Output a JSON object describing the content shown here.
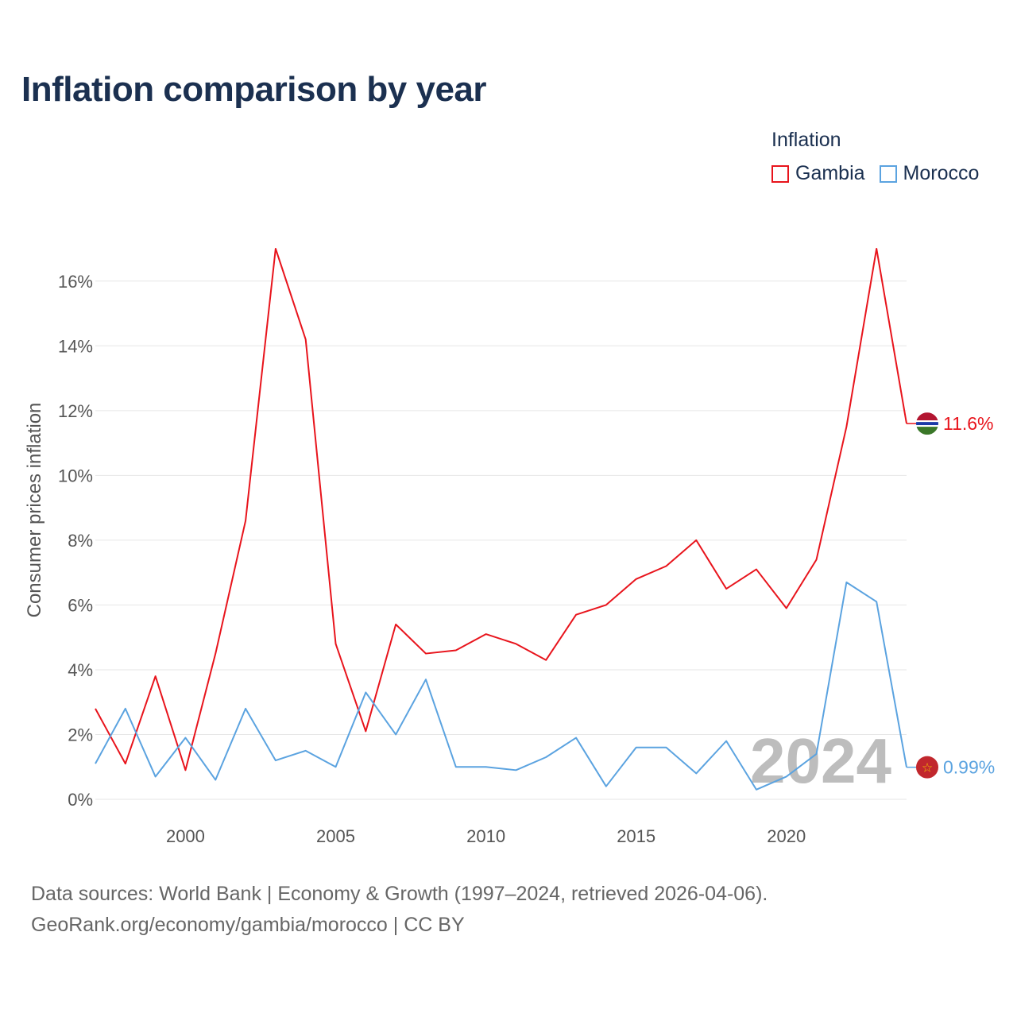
{
  "title": "Inflation comparison by year",
  "legend": {
    "title": "Inflation",
    "items": [
      {
        "label": "Gambia",
        "color": "#e8141c"
      },
      {
        "label": "Morocco",
        "color": "#5ba3e0"
      }
    ]
  },
  "footer": {
    "line1": "Data sources: World Bank | Economy & Growth (1997–2024, retrieved 2026-04-06).",
    "line2": "GeoRank.org/economy/gambia/morocco | CC BY"
  },
  "chart_data": {
    "type": "line",
    "title": "Inflation comparison by year",
    "xlabel": "",
    "ylabel": "Consumer prices inflation",
    "xlim": [
      1997,
      2024
    ],
    "ylim": [
      0,
      17
    ],
    "grid": true,
    "legend_position": "top-right",
    "x": [
      1997,
      1998,
      1999,
      2000,
      2001,
      2002,
      2003,
      2004,
      2005,
      2006,
      2007,
      2008,
      2009,
      2010,
      2011,
      2012,
      2013,
      2014,
      2015,
      2016,
      2017,
      2018,
      2019,
      2020,
      2021,
      2022,
      2023,
      2024
    ],
    "x_ticks": [
      2000,
      2005,
      2010,
      2015,
      2020
    ],
    "y_ticks": [
      0,
      2,
      4,
      6,
      8,
      10,
      12,
      14,
      16
    ],
    "y_tick_labels": [
      "0%",
      "2%",
      "4%",
      "6%",
      "8%",
      "10%",
      "12%",
      "14%",
      "16%"
    ],
    "series": [
      {
        "name": "Gambia",
        "color": "#e8141c",
        "end_label": "11.6%",
        "values": [
          2.8,
          1.1,
          3.8,
          0.9,
          4.5,
          8.6,
          17.0,
          14.2,
          4.8,
          2.1,
          5.4,
          4.5,
          4.6,
          5.1,
          4.8,
          4.3,
          5.7,
          6.0,
          6.8,
          7.2,
          8.0,
          6.5,
          7.1,
          5.9,
          7.4,
          11.5,
          17.0,
          11.6
        ]
      },
      {
        "name": "Morocco",
        "color": "#5ba3e0",
        "end_label": "0.99%",
        "values": [
          1.1,
          2.8,
          0.7,
          1.9,
          0.6,
          2.8,
          1.2,
          1.5,
          1.0,
          3.3,
          2.0,
          3.7,
          1.0,
          1.0,
          0.9,
          1.3,
          1.9,
          0.4,
          1.6,
          1.6,
          0.8,
          1.8,
          0.3,
          0.7,
          1.4,
          6.7,
          6.1,
          0.99
        ]
      }
    ],
    "current_year_label": "2024"
  }
}
